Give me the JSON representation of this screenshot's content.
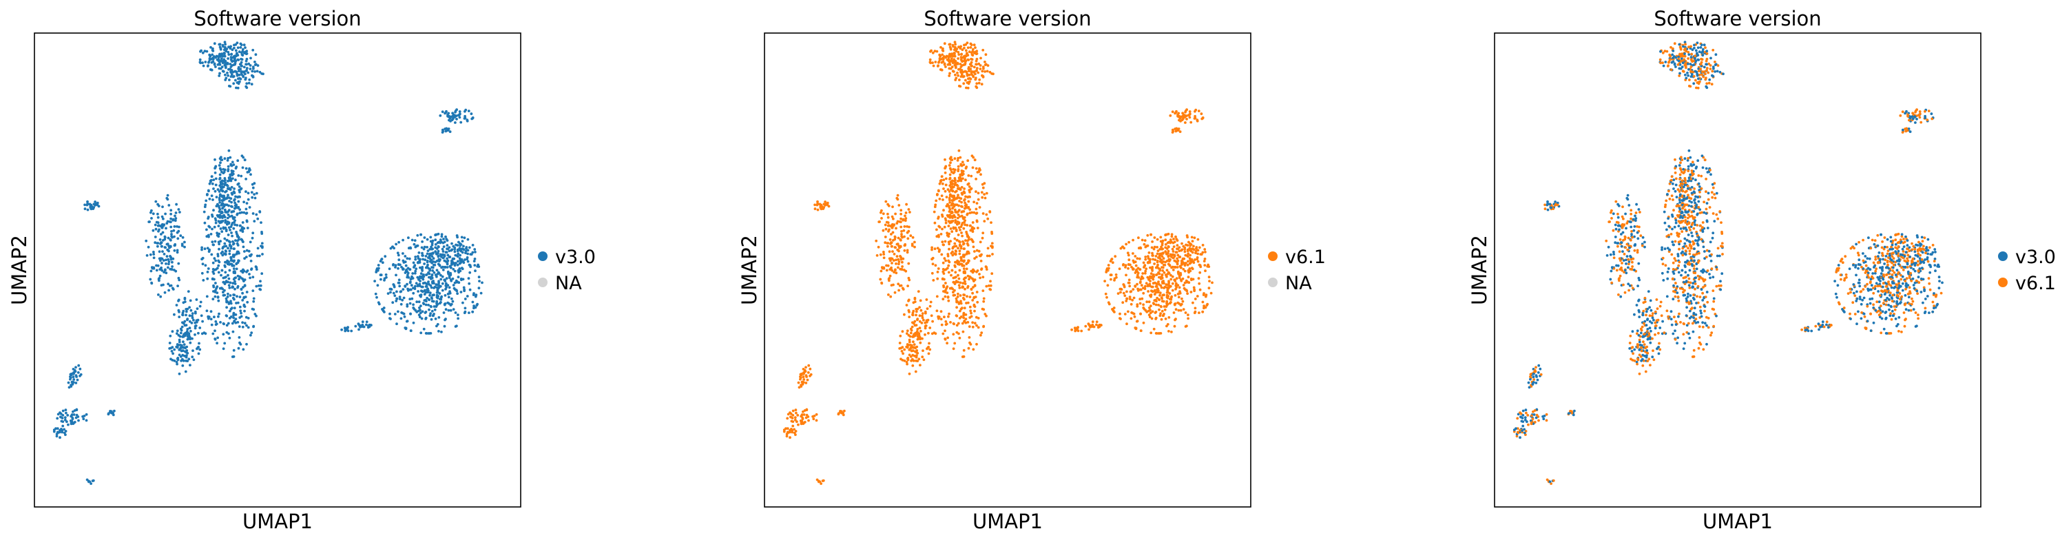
{
  "chart_data": [
    {
      "type": "scatter",
      "title": "Software version",
      "xlabel": "UMAP1",
      "ylabel": "UMAP2",
      "grid": false,
      "legend_placement": "right",
      "legend": [
        {
          "label": "v3.0",
          "color": "#1f77b4"
        },
        {
          "label": "NA",
          "color": "#d3d3d3"
        }
      ],
      "series": [
        {
          "name": "v3.0",
          "color": "#1f77b4"
        }
      ]
    },
    {
      "type": "scatter",
      "title": "Software version",
      "xlabel": "UMAP1",
      "ylabel": "UMAP2",
      "grid": false,
      "legend_placement": "right",
      "legend": [
        {
          "label": "v6.1",
          "color": "#ff7f0e"
        },
        {
          "label": "NA",
          "color": "#d3d3d3"
        }
      ],
      "series": [
        {
          "name": "v6.1",
          "color": "#ff7f0e"
        }
      ]
    },
    {
      "type": "scatter",
      "title": "Software version",
      "xlabel": "UMAP1",
      "ylabel": "UMAP2",
      "grid": false,
      "legend_placement": "right",
      "legend": [
        {
          "label": "v3.0",
          "color": "#1f77b4"
        },
        {
          "label": "v6.1",
          "color": "#ff7f0e"
        }
      ],
      "series": [
        {
          "name": "v6.1",
          "color": "#ff7f0e"
        },
        {
          "name": "v3.0",
          "color": "#1f77b4"
        }
      ]
    }
  ]
}
